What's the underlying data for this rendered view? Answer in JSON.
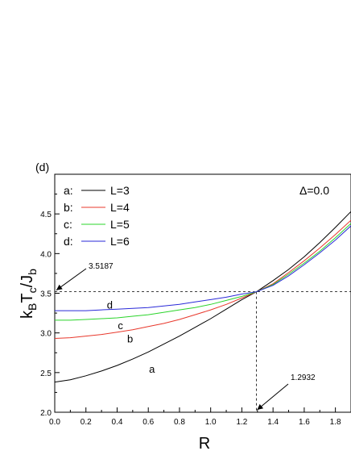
{
  "chart_data": {
    "type": "line",
    "panel_label": "(d)",
    "annotation_text": "Δ=0.0",
    "xlabel": "R",
    "ylabel": {
      "k": "k",
      "k_sub": "B",
      "t": "T",
      "t_sub": "c",
      "slash": "/J",
      "j_sub": "b"
    },
    "xlim": [
      0.0,
      1.9
    ],
    "ylim": [
      2.0,
      5.0
    ],
    "x_ticks": [
      0.0,
      0.2,
      0.4,
      0.6,
      0.8,
      1.0,
      1.2,
      1.4,
      1.6,
      1.8
    ],
    "x_tick_labels": [
      "0.0",
      "0.2",
      "0.4",
      "0.6",
      "0.8",
      "1.0",
      "1.2",
      "1.4",
      "1.6",
      "1.8"
    ],
    "y_ticks": [
      2.0,
      2.5,
      3.0,
      3.5,
      4.0,
      4.5
    ],
    "y_tick_labels": [
      "2.0",
      "2.5",
      "3.0",
      "3.5",
      "4.0",
      "4.5"
    ],
    "crossing": {
      "x": 1.2932,
      "y": 3.5187,
      "x_label": "1.2932",
      "y_label": "3.5187"
    },
    "series": [
      {
        "name": "L=3",
        "key": "a:",
        "curve_label": "a",
        "color": "#000000",
        "x": [
          0.0,
          0.1,
          0.2,
          0.3,
          0.4,
          0.5,
          0.6,
          0.7,
          0.8,
          0.9,
          1.0,
          1.1,
          1.2,
          1.2932,
          1.4,
          1.5,
          1.6,
          1.7,
          1.8,
          1.9
        ],
        "y": [
          2.38,
          2.41,
          2.46,
          2.52,
          2.59,
          2.67,
          2.76,
          2.86,
          2.96,
          3.07,
          3.18,
          3.3,
          3.42,
          3.5187,
          3.66,
          3.8,
          3.96,
          4.14,
          4.33,
          4.53
        ]
      },
      {
        "name": "L=4",
        "key": "b:",
        "curve_label": "b",
        "color": "#e8382c",
        "x": [
          0.0,
          0.1,
          0.2,
          0.3,
          0.4,
          0.5,
          0.6,
          0.7,
          0.8,
          0.9,
          1.0,
          1.1,
          1.2,
          1.2932,
          1.4,
          1.5,
          1.6,
          1.7,
          1.8,
          1.9
        ],
        "y": [
          2.93,
          2.94,
          2.96,
          2.98,
          3.01,
          3.04,
          3.08,
          3.12,
          3.17,
          3.23,
          3.29,
          3.36,
          3.44,
          3.5187,
          3.62,
          3.76,
          3.91,
          4.07,
          4.24,
          4.42
        ]
      },
      {
        "name": "L=5",
        "key": "c:",
        "curve_label": "c",
        "color": "#2bd42b",
        "x": [
          0.0,
          0.1,
          0.2,
          0.3,
          0.4,
          0.5,
          0.6,
          0.7,
          0.8,
          0.9,
          1.0,
          1.1,
          1.2,
          1.2932,
          1.4,
          1.5,
          1.6,
          1.7,
          1.8,
          1.9
        ],
        "y": [
          3.16,
          3.16,
          3.17,
          3.18,
          3.19,
          3.21,
          3.23,
          3.26,
          3.29,
          3.32,
          3.36,
          3.41,
          3.46,
          3.5187,
          3.61,
          3.74,
          3.88,
          4.03,
          4.2,
          4.38
        ]
      },
      {
        "name": "L=6",
        "key": "d:",
        "curve_label": "d",
        "color": "#2a2ad8",
        "x": [
          0.0,
          0.1,
          0.2,
          0.3,
          0.4,
          0.5,
          0.6,
          0.7,
          0.8,
          0.9,
          1.0,
          1.1,
          1.2,
          1.2932,
          1.4,
          1.5,
          1.6,
          1.7,
          1.8,
          1.9
        ],
        "y": [
          3.28,
          3.28,
          3.28,
          3.29,
          3.3,
          3.31,
          3.32,
          3.34,
          3.36,
          3.39,
          3.42,
          3.45,
          3.49,
          3.5187,
          3.6,
          3.72,
          3.86,
          4.01,
          4.17,
          4.35
        ]
      }
    ]
  }
}
